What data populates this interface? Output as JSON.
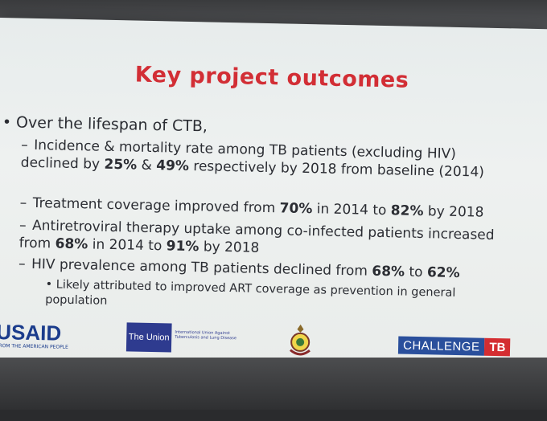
{
  "slide": {
    "title": "Key project outcomes",
    "bullet": "Over the lifespan of CTB,",
    "items": [
      {
        "parts": [
          "Incidence & mortality rate among TB patients (excluding HIV) declined by ",
          "25%",
          " & ",
          "49%",
          " respectively by 2018 from baseline (2014)"
        ]
      },
      {
        "parts": [
          "Treatment coverage improved from ",
          "70%",
          " in 2014 to ",
          "82%",
          " by 2018"
        ]
      },
      {
        "parts": [
          "Antiretroviral therapy uptake among co-infected patients increased from ",
          "68%",
          " in 2014 to ",
          "91%",
          " by 2018"
        ]
      },
      {
        "parts": [
          "HIV prevalence among TB patients declined from ",
          "68%",
          " to ",
          "62%",
          ""
        ]
      }
    ],
    "subnote": "Likely attributed to improved ART coverage as prevention in general population"
  },
  "logos": {
    "usaid": "USAID",
    "usaid_tag": "FROM THE AMERICAN PEOPLE",
    "union": "The Union",
    "union_text": "International Union Against Tuberculosis and Lung Disease",
    "ctb_a": "CHALLENGE",
    "ctb_b": "TB"
  },
  "colors": {
    "title": "#d22e35",
    "usaid_blue": "#1b3c8c",
    "union_blue": "#2e3b8f",
    "ctb_blue": "#2a4f9c",
    "ctb_red": "#d42d31"
  }
}
